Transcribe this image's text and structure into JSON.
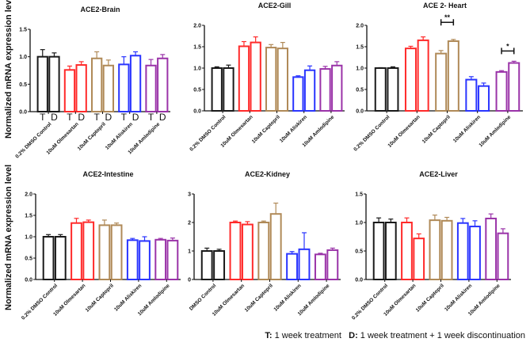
{
  "y_axis_label": "Normalized mRNA expression level",
  "footer": {
    "t_key": "T:",
    "t_text": " 1 week treatment",
    "d_key": "D:",
    "d_text": " 1 week treatment + 1 week discontinuation"
  },
  "colors": [
    "#1a1a1a",
    "#ff2a2a",
    "#b08a58",
    "#2a35ff",
    "#9a33a8"
  ],
  "chart_data": [
    {
      "type": "bar",
      "title": "ACE2-Brain",
      "ylim": [
        0,
        1.5
      ],
      "yticks": [
        "0.0",
        "0.5",
        "1.0",
        "1.5"
      ],
      "tick_values": [
        0,
        0.5,
        1,
        1.5
      ],
      "categories": [
        "0.2% DMSO Control",
        "10uM Olmesartan",
        "10uM Captopril",
        "10uM Aliskiren",
        "10uM Amlodipine"
      ],
      "bar_labels": [
        "T",
        "D"
      ],
      "series": [
        {
          "name": "T",
          "values": [
            1.0,
            0.76,
            0.97,
            0.86,
            0.84
          ],
          "sem": [
            0.13,
            0.07,
            0.12,
            0.14,
            0.11
          ]
        },
        {
          "name": "D",
          "values": [
            1.0,
            0.85,
            0.84,
            1.02,
            0.97
          ],
          "sem": [
            0.07,
            0.06,
            0.1,
            0.07,
            0.07
          ]
        }
      ],
      "annotations": []
    },
    {
      "type": "bar",
      "title": "ACE2-Gill",
      "ylim": [
        0,
        2.0
      ],
      "yticks": [
        "0.0",
        "0.5",
        "1.0",
        "1.5",
        "2.0"
      ],
      "tick_values": [
        0,
        0.5,
        1,
        1.5,
        2
      ],
      "categories": [
        "0.2% DMSO Control",
        "10uM Olmesartan",
        "10uM Captopril",
        "10uM Aliskiren",
        "10uM Amlodipine"
      ],
      "series": [
        {
          "name": "T",
          "values": [
            1.0,
            1.51,
            1.48,
            0.79,
            0.98
          ],
          "sem": [
            0.03,
            0.11,
            0.07,
            0.03,
            0.06
          ]
        },
        {
          "name": "D",
          "values": [
            1.0,
            1.6,
            1.46,
            0.95,
            1.06
          ],
          "sem": [
            0.07,
            0.13,
            0.14,
            0.1,
            0.09
          ]
        }
      ],
      "annotations": []
    },
    {
      "type": "bar",
      "title": "ACE 2- Heart",
      "ylim": [
        0,
        2.0
      ],
      "yticks": [
        "0.0",
        "0.5",
        "1.0",
        "1.5",
        "2.0"
      ],
      "tick_values": [
        0,
        0.5,
        1,
        1.5,
        2
      ],
      "categories": [
        "0.2% DMSO Control",
        "10uM Olmesartan",
        "10uM Captopril",
        "10uM Aliskiren",
        "10uM Amlodipine"
      ],
      "series": [
        {
          "name": "T",
          "values": [
            1.0,
            1.46,
            1.34,
            0.73,
            0.91
          ],
          "sem": [
            0.01,
            0.05,
            0.07,
            0.07,
            0.03
          ]
        },
        {
          "name": "D",
          "values": [
            1.0,
            1.65,
            1.63,
            0.58,
            1.12
          ],
          "sem": [
            0.03,
            0.08,
            0.04,
            0.07,
            0.04
          ]
        }
      ],
      "annotations": [
        {
          "category": "10uM Captopril",
          "label": "**",
          "y": 2.07
        },
        {
          "category": "10uM Amlodipine",
          "label": "*",
          "y": 1.4
        }
      ]
    },
    {
      "type": "bar",
      "title": "ACE2-Intestine",
      "ylim": [
        0,
        2.0
      ],
      "yticks": [
        "0.0",
        "0.5",
        "1.0",
        "1.5",
        "2.0"
      ],
      "tick_values": [
        0,
        0.5,
        1,
        1.5,
        2
      ],
      "categories": [
        "0.2% DMSO Control",
        "10uM Olmesartan",
        "10uM Captopril",
        "10uM Aliskiren",
        "10uM Amlodipine"
      ],
      "series": [
        {
          "name": "T",
          "values": [
            1.0,
            1.32,
            1.27,
            0.92,
            0.93
          ],
          "sem": [
            0.05,
            0.11,
            0.12,
            0.04,
            0.03
          ]
        },
        {
          "name": "D",
          "values": [
            1.0,
            1.34,
            1.27,
            0.9,
            0.91
          ],
          "sem": [
            0.05,
            0.05,
            0.05,
            0.1,
            0.06
          ]
        }
      ],
      "annotations": []
    },
    {
      "type": "bar",
      "title": "ACE2-Kidney",
      "ylim": [
        0,
        3
      ],
      "yticks": [
        "0",
        "1",
        "2",
        "3"
      ],
      "tick_values": [
        0,
        1,
        2,
        3
      ],
      "categories": [
        "DMSO Control",
        "10uM Olmesartan",
        "10uM Captopril",
        "10uM Aliskiren",
        "10uM Amlodipine"
      ],
      "series": [
        {
          "name": "T",
          "values": [
            1.0,
            2.0,
            2.0,
            0.9,
            0.88
          ],
          "sem": [
            0.1,
            0.05,
            0.05,
            0.08,
            0.04
          ]
        },
        {
          "name": "D",
          "values": [
            1.0,
            1.93,
            2.3,
            1.06,
            1.03
          ],
          "sem": [
            0.06,
            0.1,
            0.38,
            0.58,
            0.07
          ]
        }
      ],
      "annotations": []
    },
    {
      "type": "bar",
      "title": "ACE2-Liver",
      "ylim": [
        0,
        1.5
      ],
      "yticks": [
        "0.0",
        "0.5",
        "1.0",
        "1.5"
      ],
      "tick_values": [
        0,
        0.5,
        1,
        1.5
      ],
      "categories": [
        "0.2% DMSO Control",
        "10uM Olmesartan",
        "10uM Captopril",
        "10uM Aliskiren",
        "10uM Amlodipine"
      ],
      "series": [
        {
          "name": "T",
          "values": [
            1.0,
            1.0,
            1.04,
            0.99,
            1.07
          ],
          "sem": [
            0.08,
            0.08,
            0.09,
            0.08,
            0.08
          ]
        },
        {
          "name": "D",
          "values": [
            1.0,
            0.72,
            1.03,
            0.93,
            0.81
          ],
          "sem": [
            0.06,
            0.08,
            0.06,
            0.1,
            0.08
          ]
        }
      ],
      "annotations": []
    }
  ]
}
